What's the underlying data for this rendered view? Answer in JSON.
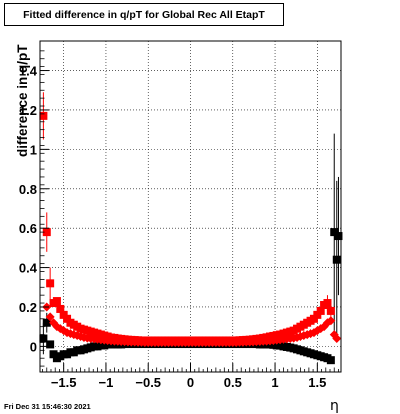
{
  "chart_data": {
    "type": "scatter",
    "title": "Fitted difference in q/pT for Global Rec All EtapT",
    "xlabel": "η",
    "ylabel": "difference in q/pT",
    "xlim": [
      -1.78,
      1.78
    ],
    "ylim": [
      -0.13,
      1.55
    ],
    "x_ticks": [
      -1.5,
      -1,
      -0.5,
      0,
      0.5,
      1,
      1.5
    ],
    "x_tick_labels": [
      "−1.5",
      "−1",
      "−0.5",
      "0",
      "0.5",
      "1",
      "1.5"
    ],
    "y_ticks": [
      0,
      0.2,
      0.4,
      0.6,
      0.8,
      1,
      1.2,
      1.4
    ],
    "y_tick_labels": [
      "0",
      "0.2",
      "0.4",
      "0.6",
      "0.8",
      "1",
      "1.2",
      "1.4"
    ],
    "grid": true,
    "legend": "none",
    "series": [
      {
        "color": "#000000",
        "marker": "square",
        "points": [
          [
            -1.74,
            0.04
          ],
          [
            -1.7,
            0.12
          ],
          [
            -1.66,
            0.01
          ],
          [
            -1.62,
            -0.04
          ],
          [
            -1.58,
            -0.06
          ],
          [
            -1.54,
            -0.05
          ],
          [
            -1.5,
            -0.04
          ],
          [
            -1.46,
            -0.04
          ],
          [
            -1.42,
            -0.03
          ],
          [
            -1.38,
            -0.03
          ],
          [
            -1.34,
            -0.02
          ],
          [
            -1.3,
            -0.02
          ],
          [
            -1.26,
            -0.015
          ],
          [
            -1.22,
            -0.01
          ],
          [
            -1.18,
            -0.005
          ],
          [
            -1.14,
            0.0
          ],
          [
            -1.1,
            0.0
          ],
          [
            -1.06,
            0.005
          ],
          [
            -1.02,
            0.005
          ],
          [
            -0.98,
            0.01
          ],
          [
            -0.94,
            0.01
          ],
          [
            -0.9,
            0.01
          ],
          [
            -0.86,
            0.01
          ],
          [
            -0.82,
            0.01
          ],
          [
            -0.78,
            0.012
          ],
          [
            -0.74,
            0.012
          ],
          [
            -0.7,
            0.012
          ],
          [
            -0.66,
            0.012
          ],
          [
            -0.62,
            0.012
          ],
          [
            -0.58,
            0.012
          ],
          [
            -0.54,
            0.012
          ],
          [
            -0.5,
            0.012
          ],
          [
            -0.46,
            0.012
          ],
          [
            -0.42,
            0.012
          ],
          [
            -0.38,
            0.012
          ],
          [
            -0.34,
            0.012
          ],
          [
            -0.3,
            0.012
          ],
          [
            -0.26,
            0.012
          ],
          [
            -0.22,
            0.012
          ],
          [
            -0.18,
            0.012
          ],
          [
            -0.14,
            0.012
          ],
          [
            -0.1,
            0.012
          ],
          [
            -0.06,
            0.012
          ],
          [
            -0.02,
            0.012
          ],
          [
            0.02,
            0.012
          ],
          [
            0.06,
            0.012
          ],
          [
            0.1,
            0.012
          ],
          [
            0.14,
            0.012
          ],
          [
            0.18,
            0.012
          ],
          [
            0.22,
            0.012
          ],
          [
            0.26,
            0.012
          ],
          [
            0.3,
            0.012
          ],
          [
            0.34,
            0.012
          ],
          [
            0.38,
            0.012
          ],
          [
            0.42,
            0.012
          ],
          [
            0.46,
            0.012
          ],
          [
            0.5,
            0.012
          ],
          [
            0.54,
            0.012
          ],
          [
            0.58,
            0.012
          ],
          [
            0.62,
            0.012
          ],
          [
            0.66,
            0.012
          ],
          [
            0.7,
            0.012
          ],
          [
            0.74,
            0.012
          ],
          [
            0.78,
            0.012
          ],
          [
            0.82,
            0.01
          ],
          [
            0.86,
            0.01
          ],
          [
            0.9,
            0.01
          ],
          [
            0.94,
            0.01
          ],
          [
            0.98,
            0.008
          ],
          [
            1.02,
            0.005
          ],
          [
            1.06,
            0.004
          ],
          [
            1.1,
            0.0
          ],
          [
            1.14,
            -0.003
          ],
          [
            1.18,
            -0.006
          ],
          [
            1.22,
            -0.01
          ],
          [
            1.26,
            -0.015
          ],
          [
            1.3,
            -0.02
          ],
          [
            1.34,
            -0.025
          ],
          [
            1.38,
            -0.03
          ],
          [
            1.42,
            -0.035
          ],
          [
            1.46,
            -0.04
          ],
          [
            1.5,
            -0.045
          ],
          [
            1.54,
            -0.05
          ],
          [
            1.58,
            -0.055
          ],
          [
            1.62,
            -0.06
          ],
          [
            1.66,
            -0.07
          ],
          [
            1.7,
            0.58
          ],
          [
            1.73,
            0.44
          ],
          [
            1.75,
            0.56
          ]
        ],
        "errors": [
          [
            -1.74,
            0.08
          ],
          [
            -1.7,
            0.05
          ],
          [
            1.7,
            0.5
          ],
          [
            1.73,
            0.4
          ],
          [
            1.75,
            0.3
          ]
        ]
      },
      {
        "color": "#ff0000",
        "marker": "square",
        "points": [
          [
            -1.74,
            1.17
          ],
          [
            -1.7,
            0.58
          ],
          [
            -1.66,
            0.32
          ],
          [
            -1.62,
            0.22
          ],
          [
            -1.58,
            0.23
          ],
          [
            -1.54,
            0.19
          ],
          [
            -1.5,
            0.16
          ],
          [
            -1.46,
            0.14
          ],
          [
            -1.42,
            0.12
          ],
          [
            -1.38,
            0.11
          ],
          [
            -1.34,
            0.1
          ],
          [
            -1.3,
            0.09
          ],
          [
            -1.26,
            0.085
          ],
          [
            -1.22,
            0.08
          ],
          [
            -1.18,
            0.075
          ],
          [
            -1.14,
            0.07
          ],
          [
            -1.1,
            0.065
          ],
          [
            -1.06,
            0.06
          ],
          [
            -1.02,
            0.055
          ],
          [
            -0.98,
            0.05
          ],
          [
            -0.94,
            0.045
          ],
          [
            -0.9,
            0.043
          ],
          [
            -0.86,
            0.04
          ],
          [
            -0.82,
            0.038
          ],
          [
            -0.78,
            0.036
          ],
          [
            -0.74,
            0.034
          ],
          [
            -0.7,
            0.033
          ],
          [
            -0.66,
            0.032
          ],
          [
            -0.62,
            0.031
          ],
          [
            -0.58,
            0.03
          ],
          [
            -0.54,
            0.03
          ],
          [
            -0.5,
            0.03
          ],
          [
            -0.46,
            0.03
          ],
          [
            -0.42,
            0.03
          ],
          [
            -0.38,
            0.03
          ],
          [
            -0.34,
            0.03
          ],
          [
            -0.3,
            0.03
          ],
          [
            -0.26,
            0.03
          ],
          [
            -0.22,
            0.03
          ],
          [
            -0.18,
            0.03
          ],
          [
            -0.14,
            0.03
          ],
          [
            -0.1,
            0.03
          ],
          [
            -0.06,
            0.03
          ],
          [
            -0.02,
            0.03
          ],
          [
            0.02,
            0.03
          ],
          [
            0.06,
            0.03
          ],
          [
            0.1,
            0.03
          ],
          [
            0.14,
            0.03
          ],
          [
            0.18,
            0.03
          ],
          [
            0.22,
            0.03
          ],
          [
            0.26,
            0.03
          ],
          [
            0.3,
            0.03
          ],
          [
            0.34,
            0.03
          ],
          [
            0.38,
            0.03
          ],
          [
            0.42,
            0.03
          ],
          [
            0.46,
            0.03
          ],
          [
            0.5,
            0.03
          ],
          [
            0.54,
            0.03
          ],
          [
            0.58,
            0.031
          ],
          [
            0.62,
            0.032
          ],
          [
            0.66,
            0.033
          ],
          [
            0.7,
            0.034
          ],
          [
            0.74,
            0.036
          ],
          [
            0.78,
            0.038
          ],
          [
            0.82,
            0.04
          ],
          [
            0.86,
            0.043
          ],
          [
            0.9,
            0.046
          ],
          [
            0.94,
            0.05
          ],
          [
            0.98,
            0.053
          ],
          [
            1.02,
            0.057
          ],
          [
            1.06,
            0.06
          ],
          [
            1.1,
            0.065
          ],
          [
            1.14,
            0.07
          ],
          [
            1.18,
            0.075
          ],
          [
            1.22,
            0.08
          ],
          [
            1.26,
            0.09
          ],
          [
            1.3,
            0.1
          ],
          [
            1.34,
            0.11
          ],
          [
            1.38,
            0.12
          ],
          [
            1.42,
            0.13
          ],
          [
            1.46,
            0.14
          ],
          [
            1.5,
            0.16
          ],
          [
            1.54,
            0.18
          ],
          [
            1.58,
            0.21
          ],
          [
            1.62,
            0.22
          ],
          [
            1.66,
            0.18
          ]
        ],
        "errors": [
          [
            -1.74,
            0.12
          ],
          [
            -1.7,
            0.1
          ],
          [
            -1.66,
            0.08
          ],
          [
            1.62,
            0.04
          ],
          [
            1.66,
            0.05
          ]
        ]
      },
      {
        "color": "#ff0000",
        "marker": "diamond",
        "points": [
          [
            -1.7,
            0.2
          ],
          [
            -1.66,
            0.15
          ],
          [
            -1.62,
            0.12
          ],
          [
            -1.58,
            0.1
          ],
          [
            -1.54,
            0.09
          ],
          [
            -1.5,
            0.08
          ],
          [
            -1.46,
            0.07
          ],
          [
            -1.42,
            0.065
          ],
          [
            -1.38,
            0.06
          ],
          [
            -1.34,
            0.055
          ],
          [
            -1.3,
            0.05
          ],
          [
            -1.26,
            0.045
          ],
          [
            -1.22,
            0.042
          ],
          [
            -1.18,
            0.04
          ],
          [
            -1.14,
            0.038
          ],
          [
            -1.1,
            0.036
          ],
          [
            -1.06,
            0.034
          ],
          [
            -1.02,
            0.032
          ],
          [
            -0.98,
            0.03
          ],
          [
            -0.94,
            0.028
          ],
          [
            -0.9,
            0.027
          ],
          [
            -0.86,
            0.026
          ],
          [
            -0.82,
            0.025
          ],
          [
            -0.78,
            0.024
          ],
          [
            -0.74,
            0.023
          ],
          [
            -0.7,
            0.022
          ],
          [
            -0.66,
            0.022
          ],
          [
            -0.62,
            0.021
          ],
          [
            -0.58,
            0.021
          ],
          [
            -0.54,
            0.02
          ],
          [
            -0.5,
            0.02
          ],
          [
            -0.46,
            0.02
          ],
          [
            -0.42,
            0.02
          ],
          [
            -0.38,
            0.02
          ],
          [
            -0.34,
            0.02
          ],
          [
            -0.3,
            0.02
          ],
          [
            -0.26,
            0.02
          ],
          [
            -0.22,
            0.02
          ],
          [
            -0.18,
            0.02
          ],
          [
            -0.14,
            0.02
          ],
          [
            -0.1,
            0.02
          ],
          [
            -0.06,
            0.02
          ],
          [
            -0.02,
            0.02
          ],
          [
            0.02,
            0.02
          ],
          [
            0.06,
            0.02
          ],
          [
            0.1,
            0.02
          ],
          [
            0.14,
            0.02
          ],
          [
            0.18,
            0.02
          ],
          [
            0.22,
            0.02
          ],
          [
            0.26,
            0.02
          ],
          [
            0.3,
            0.02
          ],
          [
            0.34,
            0.02
          ],
          [
            0.38,
            0.02
          ],
          [
            0.42,
            0.02
          ],
          [
            0.46,
            0.02
          ],
          [
            0.5,
            0.02
          ],
          [
            0.54,
            0.02
          ],
          [
            0.58,
            0.021
          ],
          [
            0.62,
            0.021
          ],
          [
            0.66,
            0.022
          ],
          [
            0.7,
            0.022
          ],
          [
            0.74,
            0.023
          ],
          [
            0.78,
            0.024
          ],
          [
            0.82,
            0.025
          ],
          [
            0.86,
            0.026
          ],
          [
            0.9,
            0.027
          ],
          [
            0.94,
            0.028
          ],
          [
            0.98,
            0.03
          ],
          [
            1.02,
            0.032
          ],
          [
            1.06,
            0.034
          ],
          [
            1.1,
            0.036
          ],
          [
            1.14,
            0.038
          ],
          [
            1.18,
            0.04
          ],
          [
            1.22,
            0.042
          ],
          [
            1.26,
            0.045
          ],
          [
            1.3,
            0.05
          ],
          [
            1.34,
            0.055
          ],
          [
            1.38,
            0.06
          ],
          [
            1.42,
            0.065
          ],
          [
            1.46,
            0.07
          ],
          [
            1.5,
            0.08
          ],
          [
            1.54,
            0.09
          ],
          [
            1.58,
            0.1
          ],
          [
            1.62,
            0.12
          ],
          [
            1.66,
            0.13
          ],
          [
            1.7,
            0.06
          ],
          [
            1.73,
            0.04
          ]
        ],
        "errors": []
      }
    ]
  },
  "footer": {
    "timestamp": "Fri Dec 31 15:46:30 2021"
  }
}
